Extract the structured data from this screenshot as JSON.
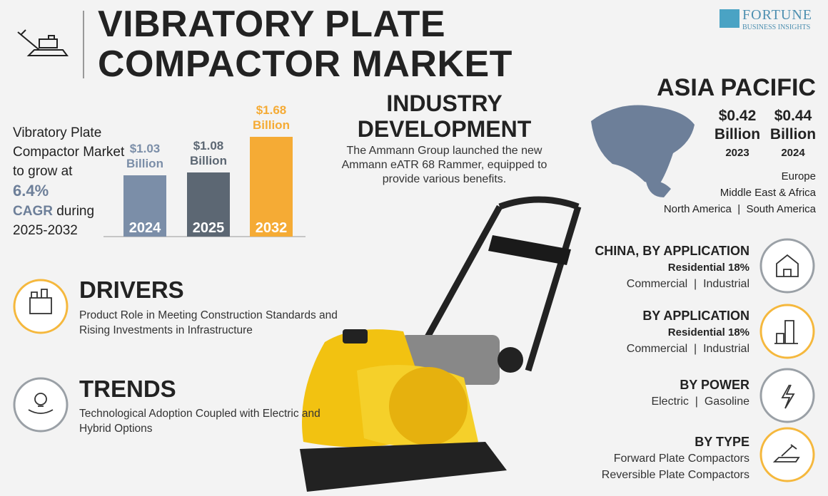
{
  "header": {
    "title": "VIBRATORY PLATE COMPACTOR MARKET",
    "logo_name": "FORTUNE",
    "logo_tagline": "BUSINESS INSIGHTS"
  },
  "summary": {
    "intro": "Vibratory Plate Compactor Market to grow at",
    "cagr_value": "6.4%",
    "cagr_label": "CAGR",
    "during": "during",
    "period": "2025-2032"
  },
  "chart_data": {
    "type": "bar",
    "categories": [
      "2024",
      "2025",
      "2032"
    ],
    "values": [
      1.03,
      1.08,
      1.68
    ],
    "value_labels": [
      "$1.03 Billion",
      "$1.08 Billion",
      "$1.68 Billion"
    ],
    "colors": [
      "#7b8ea8",
      "#5c6773",
      "#f5ab35"
    ]
  },
  "industry": {
    "title": "INDUSTRY DEVELOPMENT",
    "text": "The Ammann Group launched the new Ammann eATR 68 Rammer, equipped to provide various benefits."
  },
  "region": {
    "title": "ASIA PACIFIC",
    "stats": [
      {
        "value": "$0.42 Billion",
        "year": "2023"
      },
      {
        "value": "$0.44 Billion",
        "year": "2024"
      }
    ],
    "others": [
      "Europe",
      "Middle East & Africa",
      "North America  |  South America"
    ]
  },
  "drivers": {
    "title": "DRIVERS",
    "text": "Product Role in Meeting Construction Standards and Rising Investments in Infrastructure"
  },
  "trends": {
    "title": "TRENDS",
    "text": "Technological Adoption Coupled with Electric and Hybrid Options"
  },
  "segments": [
    {
      "title": "CHINA, BY APPLICATION",
      "highlight": "Residential 18%",
      "lines": [
        "Commercial  |  Industrial"
      ]
    },
    {
      "title": "BY APPLICATION",
      "highlight": "Residential 18%",
      "lines": [
        "Commercial  |  Industrial"
      ]
    },
    {
      "title": "BY POWER",
      "lines": [
        "Electric  |  Gasoline"
      ]
    },
    {
      "title": "BY TYPE",
      "lines": [
        "Forward Plate Compactors",
        "Reversible Plate Compactors"
      ]
    }
  ]
}
